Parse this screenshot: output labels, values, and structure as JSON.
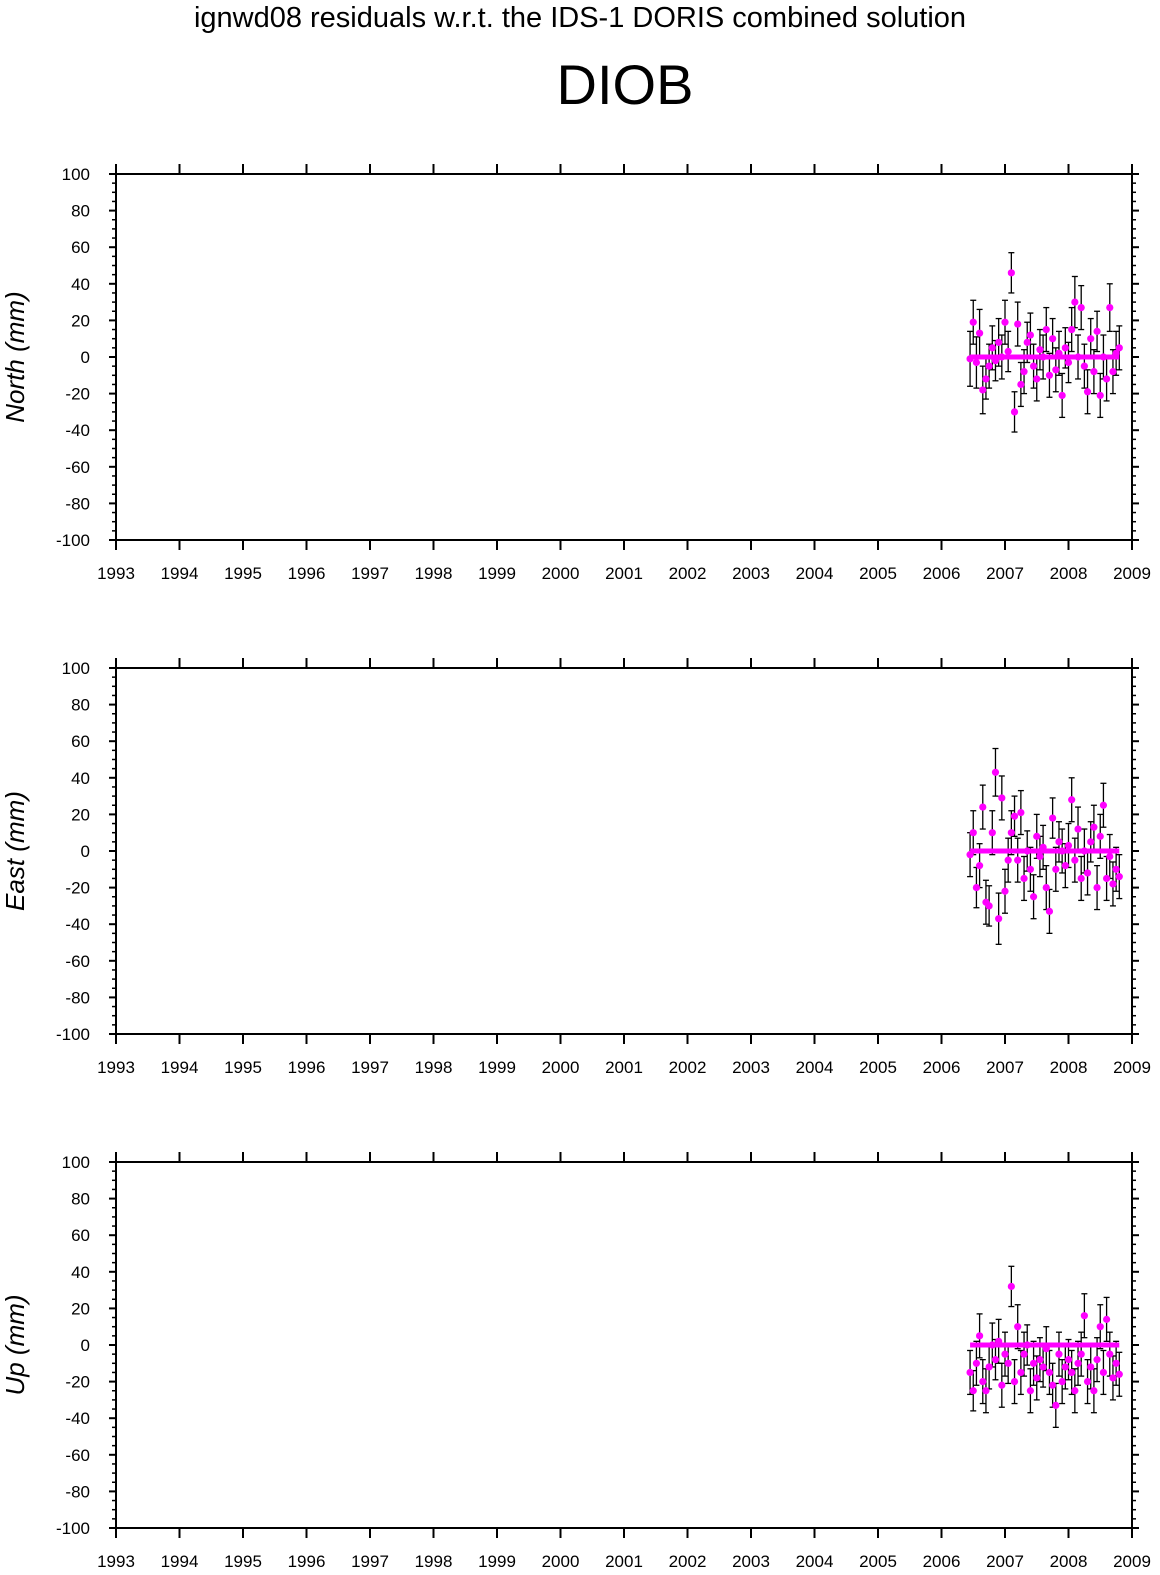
{
  "header": {
    "supertitle": "ignwd08 residuals w.r.t. the IDS-1 DORIS combined solution",
    "station": "DIOB"
  },
  "colors": {
    "point": "#ff00ff",
    "error_bar": "#000000",
    "axis": "#000000"
  },
  "chart_data": [
    {
      "type": "scatter",
      "title": "",
      "ylabel": "North (mm)",
      "xlabel": "",
      "xlim": [
        1993,
        2009
      ],
      "ylim": [
        -100,
        100
      ],
      "x_ticks": [
        1993,
        1994,
        1995,
        1996,
        1997,
        1998,
        1999,
        2000,
        2001,
        2002,
        2003,
        2004,
        2005,
        2006,
        2007,
        2008,
        2009
      ],
      "y_ticks": [
        100,
        80,
        60,
        40,
        20,
        0,
        -20,
        -40,
        -60,
        -80,
        -100
      ],
      "error_bars": true,
      "grid": false,
      "x": [
        2006.45,
        2006.5,
        2006.55,
        2006.6,
        2006.65,
        2006.7,
        2006.75,
        2006.8,
        2006.85,
        2006.9,
        2006.95,
        2007.0,
        2007.05,
        2007.1,
        2007.15,
        2007.2,
        2007.25,
        2007.3,
        2007.35,
        2007.4,
        2007.45,
        2007.5,
        2007.55,
        2007.6,
        2007.65,
        2007.7,
        2007.75,
        2007.8,
        2007.85,
        2007.9,
        2007.95,
        2008.0,
        2008.05,
        2008.1,
        2008.15,
        2008.2,
        2008.25,
        2008.3,
        2008.35,
        2008.4,
        2008.45,
        2008.5,
        2008.55,
        2008.6,
        2008.65,
        2008.7,
        2008.75,
        2008.8
      ],
      "y": [
        -1,
        19,
        -3,
        13,
        -18,
        -12,
        -5,
        5,
        -2,
        8,
        0,
        19,
        3,
        46,
        -30,
        18,
        -15,
        -8,
        8,
        12,
        -5,
        -12,
        4,
        0,
        15,
        -10,
        10,
        -7,
        2,
        -21,
        5,
        -3,
        15,
        30,
        0,
        27,
        -5,
        -19,
        10,
        -8,
        14,
        -21,
        0,
        -12,
        27,
        -8,
        2,
        5
      ],
      "err": [
        15,
        12,
        14,
        13,
        13,
        11,
        12,
        12,
        11,
        13,
        12,
        12,
        11,
        11,
        11,
        12,
        12,
        12,
        11,
        12,
        12,
        12,
        11,
        12,
        12,
        12,
        11,
        12,
        12,
        12,
        11,
        11,
        12,
        14,
        12,
        12,
        12,
        12,
        11,
        12,
        11,
        12,
        12,
        12,
        13,
        12,
        12,
        12
      ]
    },
    {
      "type": "scatter",
      "title": "",
      "ylabel": "East (mm)",
      "xlabel": "",
      "xlim": [
        1993,
        2009
      ],
      "ylim": [
        -100,
        100
      ],
      "x_ticks": [
        1993,
        1994,
        1995,
        1996,
        1997,
        1998,
        1999,
        2000,
        2001,
        2002,
        2003,
        2004,
        2005,
        2006,
        2007,
        2008,
        2009
      ],
      "y_ticks": [
        100,
        80,
        60,
        40,
        20,
        0,
        -20,
        -40,
        -60,
        -80,
        -100
      ],
      "error_bars": true,
      "grid": false,
      "x": [
        2006.45,
        2006.5,
        2006.55,
        2006.6,
        2006.65,
        2006.7,
        2006.75,
        2006.8,
        2006.85,
        2006.9,
        2006.95,
        2007.0,
        2007.05,
        2007.1,
        2007.15,
        2007.2,
        2007.25,
        2007.3,
        2007.35,
        2007.4,
        2007.45,
        2007.5,
        2007.55,
        2007.6,
        2007.65,
        2007.7,
        2007.75,
        2007.8,
        2007.85,
        2007.9,
        2007.95,
        2008.0,
        2008.05,
        2008.1,
        2008.15,
        2008.2,
        2008.25,
        2008.3,
        2008.35,
        2008.4,
        2008.45,
        2008.5,
        2008.55,
        2008.6,
        2008.65,
        2008.7,
        2008.75,
        2008.8
      ],
      "y": [
        -2,
        10,
        -20,
        -8,
        24,
        -28,
        -30,
        10,
        43,
        -37,
        29,
        -22,
        -5,
        10,
        19,
        -5,
        21,
        -15,
        0,
        -10,
        -25,
        8,
        -3,
        2,
        -20,
        -33,
        18,
        -10,
        5,
        0,
        -8,
        3,
        28,
        -5,
        12,
        -15,
        0,
        -12,
        5,
        13,
        -20,
        8,
        25,
        -15,
        -3,
        -18,
        -10,
        -14
      ],
      "err": [
        12,
        12,
        11,
        12,
        12,
        12,
        11,
        12,
        13,
        14,
        12,
        12,
        12,
        12,
        11,
        12,
        12,
        12,
        11,
        12,
        12,
        12,
        11,
        12,
        12,
        12,
        11,
        12,
        11,
        12,
        12,
        12,
        12,
        12,
        12,
        12,
        12,
        12,
        11,
        12,
        12,
        12,
        12,
        12,
        12,
        12,
        12,
        12
      ]
    },
    {
      "type": "scatter",
      "title": "",
      "ylabel": "Up (mm)",
      "xlabel": "",
      "xlim": [
        1993,
        2009
      ],
      "ylim": [
        -100,
        100
      ],
      "x_ticks": [
        1993,
        1994,
        1995,
        1996,
        1997,
        1998,
        1999,
        2000,
        2001,
        2002,
        2003,
        2004,
        2005,
        2006,
        2007,
        2008,
        2009
      ],
      "y_ticks": [
        100,
        80,
        60,
        40,
        20,
        0,
        -20,
        -40,
        -60,
        -80,
        -100
      ],
      "error_bars": true,
      "grid": false,
      "x": [
        2006.45,
        2006.5,
        2006.55,
        2006.6,
        2006.65,
        2006.7,
        2006.75,
        2006.8,
        2006.85,
        2006.9,
        2006.95,
        2007.0,
        2007.05,
        2007.1,
        2007.15,
        2007.2,
        2007.25,
        2007.3,
        2007.35,
        2007.4,
        2007.45,
        2007.5,
        2007.55,
        2007.6,
        2007.65,
        2007.7,
        2007.75,
        2007.8,
        2007.85,
        2007.9,
        2007.95,
        2008.0,
        2008.05,
        2008.1,
        2008.15,
        2008.2,
        2008.25,
        2008.3,
        2008.35,
        2008.4,
        2008.45,
        2008.5,
        2008.55,
        2008.6,
        2008.65,
        2008.7,
        2008.75,
        2008.8
      ],
      "y": [
        -15,
        -25,
        -10,
        5,
        -20,
        -25,
        -12,
        0,
        -8,
        2,
        -22,
        -5,
        -10,
        32,
        -20,
        10,
        -15,
        -5,
        0,
        -25,
        -10,
        -18,
        -8,
        -12,
        -2,
        -15,
        -22,
        -33,
        -5,
        -20,
        -12,
        -8,
        -15,
        -25,
        -10,
        -5,
        16,
        -20,
        -12,
        -25,
        -8,
        10,
        -15,
        14,
        -5,
        -18,
        -10,
        -16
      ],
      "err": [
        12,
        11,
        12,
        12,
        12,
        12,
        12,
        12,
        11,
        12,
        12,
        12,
        11,
        11,
        12,
        12,
        12,
        12,
        11,
        12,
        12,
        12,
        12,
        11,
        12,
        12,
        12,
        12,
        12,
        12,
        12,
        11,
        12,
        12,
        12,
        12,
        12,
        12,
        12,
        12,
        12,
        12,
        12,
        12,
        12,
        12,
        12,
        12
      ]
    }
  ]
}
